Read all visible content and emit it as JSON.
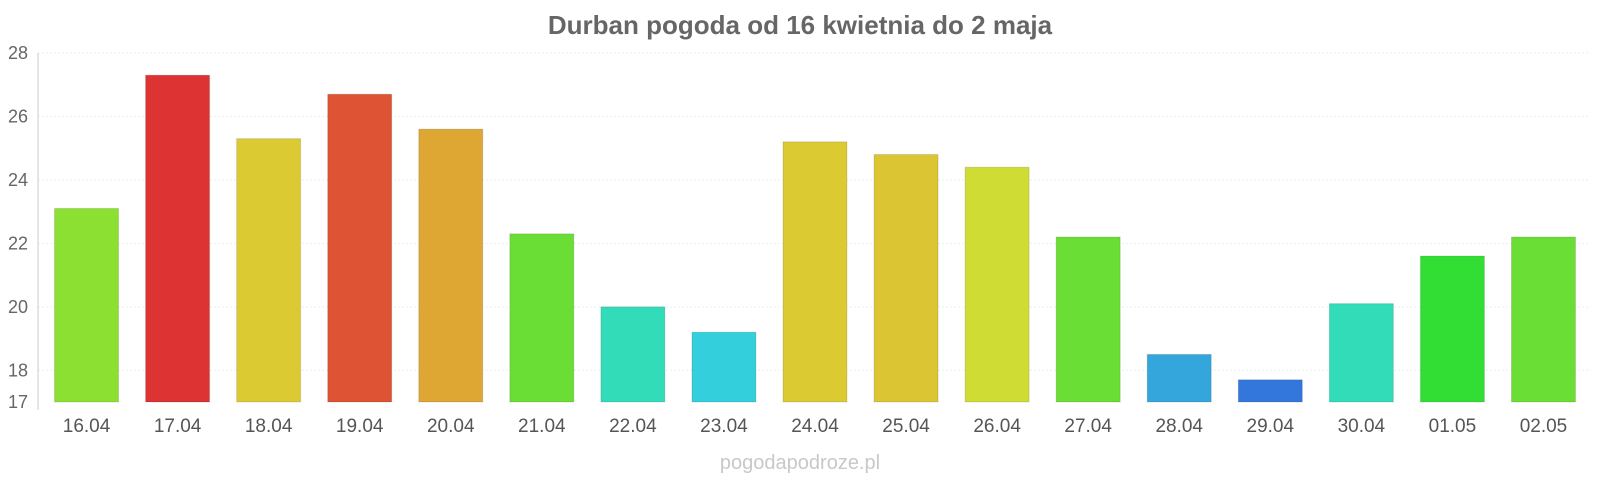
{
  "chart_data": {
    "type": "bar",
    "title": "Durban pogoda od 16 kwietnia do 2 maja",
    "categories": [
      "16.04",
      "17.04",
      "18.04",
      "19.04",
      "20.04",
      "21.04",
      "22.04",
      "23.04",
      "24.04",
      "25.04",
      "26.04",
      "27.04",
      "28.04",
      "29.04",
      "30.04",
      "01.05",
      "02.05"
    ],
    "values": [
      23.1,
      27.3,
      25.3,
      26.7,
      25.6,
      22.3,
      20.0,
      19.2,
      25.2,
      24.8,
      24.4,
      22.2,
      18.5,
      17.7,
      20.1,
      21.6,
      22.2
    ],
    "colors": [
      "#8be032",
      "#dd3333",
      "#dcca33",
      "#de5333",
      "#dea733",
      "#6ade34",
      "#33dcb9",
      "#33cfdc",
      "#dcca33",
      "#dcc533",
      "#cfdc33",
      "#6ade34",
      "#34a6dc",
      "#3377dc",
      "#33dcb9",
      "#33de34",
      "#6ade34"
    ],
    "yticks": [
      17,
      18,
      20,
      22,
      24,
      26,
      28
    ],
    "ylim": [
      17,
      28
    ],
    "grid": true,
    "xlabel": "",
    "ylabel": ""
  },
  "watermark": "pogodapodroze.pl"
}
